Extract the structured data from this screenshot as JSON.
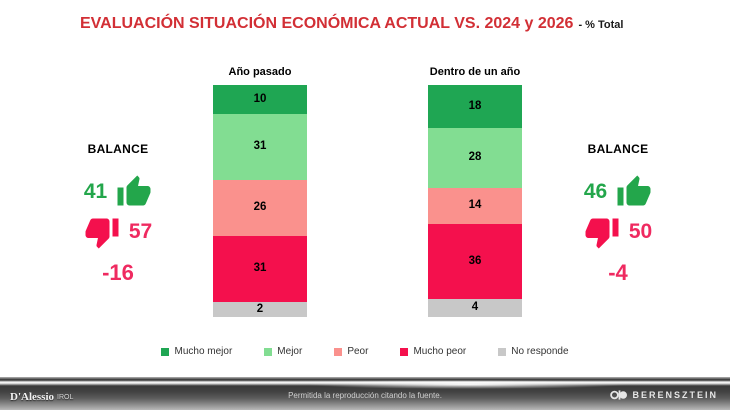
{
  "title": {
    "main": "EVALUACIÓN SITUACIÓN ECONÓMICA ACTUAL VS. 2024 y 2026",
    "suffix": "- % Total"
  },
  "chart_data": {
    "type": "bar",
    "stacked": true,
    "orientation": "vertical",
    "unit": "% of total",
    "categories": [
      "Año pasado",
      "Dentro de un año"
    ],
    "series": [
      {
        "name": "Mucho mejor",
        "color": "#1fa653",
        "values": [
          10,
          18
        ]
      },
      {
        "name": "Mejor",
        "color": "#82dd92",
        "values": [
          31,
          28
        ]
      },
      {
        "name": "Peor",
        "color": "#fa918d",
        "values": [
          26,
          14
        ]
      },
      {
        "name": "Mucho peor",
        "color": "#f4104d",
        "values": [
          31,
          36
        ]
      },
      {
        "name": "No responde",
        "color": "#c8c8c8",
        "values": [
          2,
          4
        ]
      }
    ],
    "value_labels": true,
    "legend_position": "bottom",
    "ylim": [
      0,
      100
    ]
  },
  "balances": [
    {
      "label": "BALANCE",
      "positive": "41",
      "negative": "57",
      "net": "-16"
    },
    {
      "label": "BALANCE",
      "positive": "46",
      "negative": "50",
      "net": "-4"
    }
  ],
  "colors": {
    "title_red": "#d22f35",
    "balance_positive_green": "#23a64b",
    "balance_negative_pink": "#ef2a60",
    "thumb_up_green": "#23a64b",
    "thumb_down_pink": "#f4104d"
  },
  "footer": {
    "left_logo_primary": "D'Alessio",
    "left_logo_secondary": "IROL",
    "center_text": "Permitida la reproducción citando la fuente.",
    "right_logo": "BERENSZTEIN"
  }
}
